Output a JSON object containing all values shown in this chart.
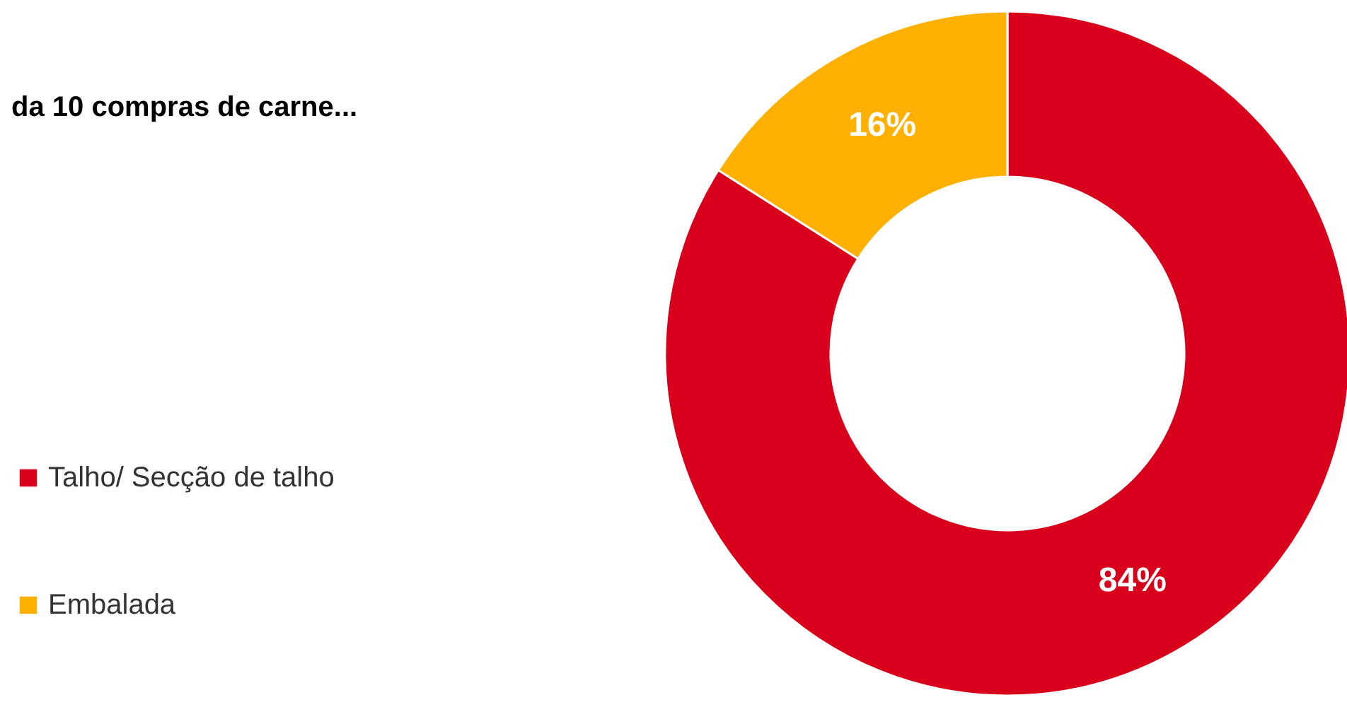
{
  "chart_data": {
    "type": "donut",
    "title": "da 10 compras de carne...",
    "categories": [
      "Talho/ Secção de talho",
      "Embalada"
    ],
    "values": [
      84,
      16
    ],
    "colors": [
      "#d9001b",
      "#ffb000"
    ],
    "value_labels": [
      "84%",
      "16%"
    ],
    "legend": "left"
  }
}
